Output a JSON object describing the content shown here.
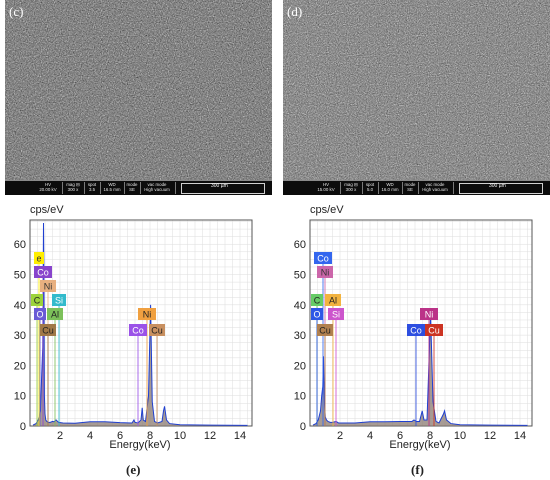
{
  "colors": {
    "grid": "#dddddd",
    "frame": "#555555",
    "spectrum_fill": "#8a7a70",
    "spectrum_line": "#1f3fd0"
  },
  "panels": [
    {
      "sem": {
        "label": "(c)",
        "info": [
          {
            "header": "HV",
            "value": "20.00 kV"
          },
          {
            "header": "mag ⊟",
            "value": "300 x"
          },
          {
            "header": "spot",
            "value": "3.5"
          },
          {
            "header": "WD",
            "value": "16.5 mm"
          },
          {
            "header": "mode",
            "value": "SE"
          },
          {
            "header": "vac mode",
            "value": "High vacuum"
          }
        ],
        "scale_label": "300 µm"
      },
      "spectrum": {
        "y_title": "cps/eV",
        "x_title": "Energy(keV)",
        "caption": "(e)",
        "y_ticks": [
          "0",
          "10",
          "20",
          "30",
          "40",
          "50",
          "60"
        ],
        "x_ticks": [
          "2",
          "4",
          "6",
          "8",
          "10",
          "12",
          "14"
        ],
        "labels": [
          {
            "text": "e",
            "bg": "#ffee00",
            "fg": "#333333"
          },
          {
            "text": "Co",
            "bg": "#8844cc",
            "fg": "#ffffff"
          },
          {
            "text": "Ni",
            "bg": "#e8b080",
            "fg": "#333333"
          },
          {
            "text": "C",
            "bg": "#9cd33a",
            "fg": "#222222"
          },
          {
            "text": "Si",
            "bg": "#33bbcc",
            "fg": "#ffffff"
          },
          {
            "text": "O",
            "bg": "#6a5ad6",
            "fg": "#ffffff"
          },
          {
            "text": "Al",
            "bg": "#7cc05a",
            "fg": "#222222"
          },
          {
            "text": "Cu",
            "bg": "#a07848",
            "fg": "#222222"
          },
          {
            "text": "Ni",
            "bg": "#f0a040",
            "fg": "#222222"
          },
          {
            "text": "Co",
            "bg": "#9b52e8",
            "fg": "#ffffff"
          },
          {
            "text": "Cu",
            "bg": "#c89060",
            "fg": "#222222"
          }
        ]
      }
    },
    {
      "sem": {
        "label": "(d)",
        "info": [
          {
            "header": "HV",
            "value": "15.00 kV"
          },
          {
            "header": "mag ⊟",
            "value": "300 x"
          },
          {
            "header": "spot",
            "value": "5.0"
          },
          {
            "header": "WD",
            "value": "16.0 mm"
          },
          {
            "header": "mode",
            "value": "SE"
          },
          {
            "header": "vac mode",
            "value": "High vacuum"
          }
        ],
        "scale_label": "300 µm"
      },
      "spectrum": {
        "y_title": "cps/eV",
        "x_title": "Energy(keV)",
        "caption": "(f)",
        "y_ticks": [
          "0",
          "10",
          "20",
          "30",
          "40",
          "50",
          "60"
        ],
        "x_ticks": [
          "2",
          "4",
          "6",
          "8",
          "10",
          "12",
          "14"
        ],
        "labels": [
          {
            "text": "Co",
            "bg": "#3366ee",
            "fg": "#ffffff"
          },
          {
            "text": "Ni",
            "bg": "#cc66aa",
            "fg": "#333333"
          },
          {
            "text": "C",
            "bg": "#66cc66",
            "fg": "#222222"
          },
          {
            "text": "Al",
            "bg": "#f2b340",
            "fg": "#222222"
          },
          {
            "text": "O",
            "bg": "#2e57e6",
            "fg": "#ffffff"
          },
          {
            "text": "Si",
            "bg": "#cc55cc",
            "fg": "#ffffff"
          },
          {
            "text": "Cu",
            "bg": "#b08050",
            "fg": "#222222"
          },
          {
            "text": "Ni",
            "bg": "#bb3388",
            "fg": "#ffffff"
          },
          {
            "text": "Co",
            "bg": "#2d4ee0",
            "fg": "#ffffff"
          },
          {
            "text": "Cu",
            "bg": "#cc3322",
            "fg": "#ffffff"
          }
        ]
      }
    }
  ],
  "chart_data": [
    {
      "type": "line",
      "title": "",
      "xlabel": "Energy(keV)",
      "ylabel": "cps/eV",
      "xlim": [
        0,
        14.8
      ],
      "ylim": [
        0,
        68
      ],
      "grid": true,
      "series": [
        {
          "x": [
            0.2,
            0.4,
            0.55,
            0.7,
            0.78,
            0.85,
            0.9,
            0.93,
            0.96,
            1.0,
            1.05,
            1.12,
            1.2,
            1.35,
            1.5,
            1.6,
            1.74,
            1.9,
            2.2,
            3,
            4,
            5,
            6,
            6.8,
            6.93,
            7.0,
            7.2,
            7.4,
            7.48,
            7.55,
            7.7,
            7.9,
            8.04,
            8.15,
            8.3,
            8.5,
            8.8,
            8.9,
            8.97,
            9.1,
            9.3,
            10,
            12,
            14.5
          ],
          "y": [
            0.3,
            0.8,
            2,
            5,
            17,
            26,
            67,
            48,
            10,
            4,
            2,
            1.5,
            1.2,
            1.2,
            1.5,
            1.4,
            2,
            1.2,
            1,
            0.9,
            1.4,
            1.4,
            1.1,
            1,
            2,
            1.2,
            1,
            2,
            6,
            2,
            1.5,
            10,
            40,
            8,
            1.5,
            1,
            1.5,
            5,
            6.5,
            2,
            0.8,
            0.4,
            0.3,
            0.2
          ]
        }
      ]
    },
    {
      "type": "line",
      "title": "",
      "xlabel": "Energy(keV)",
      "ylabel": "cps/eV",
      "xlim": [
        0,
        14.8
      ],
      "ylim": [
        0,
        68
      ],
      "grid": true,
      "series": [
        {
          "x": [
            0.2,
            0.4,
            0.55,
            0.7,
            0.78,
            0.85,
            0.9,
            0.93,
            0.97,
            1.02,
            1.1,
            1.2,
            1.35,
            1.5,
            1.74,
            1.9,
            2.3,
            3,
            4,
            5,
            6,
            6.8,
            6.93,
            7.1,
            7.3,
            7.48,
            7.6,
            7.8,
            8.04,
            8.2,
            8.4,
            8.6,
            8.9,
            8.97,
            9.1,
            9.4,
            10,
            12,
            14.5
          ],
          "y": [
            0.3,
            0.8,
            2,
            5,
            10,
            13,
            23,
            15,
            7,
            3,
            2,
            1.5,
            1.2,
            1.2,
            1.5,
            1,
            1,
            1,
            1.4,
            1.4,
            1.5,
            1.5,
            2,
            1.5,
            1.5,
            5,
            2,
            2,
            37,
            8,
            1.5,
            1,
            4,
            5,
            2,
            0.8,
            0.4,
            0.3,
            0.2
          ]
        }
      ]
    }
  ]
}
